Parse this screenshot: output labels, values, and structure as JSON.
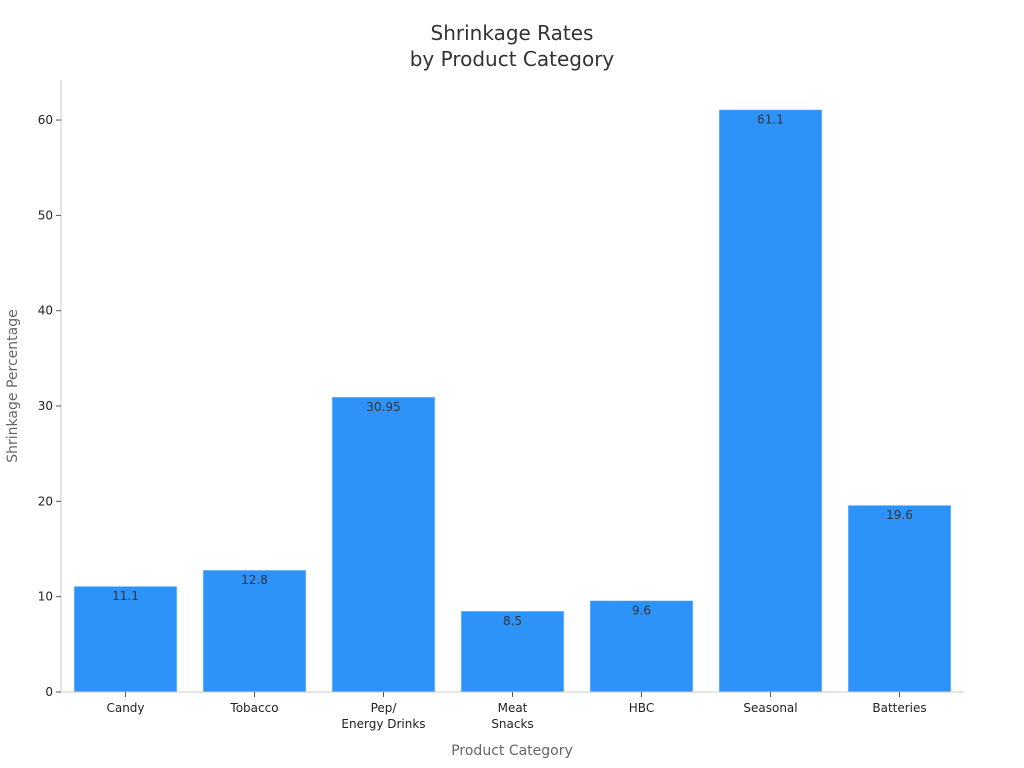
{
  "chart_data": {
    "type": "bar",
    "title": "Shrinkage Rates\nby Product Category",
    "xlabel": "Product Category",
    "ylabel": "Shrinkage Percentage",
    "categories": [
      "Candy",
      "Tobacco",
      "Pep/\nEnergy Drinks",
      "Meat\nSnacks",
      "HBC",
      "Seasonal",
      "Batteries"
    ],
    "values": [
      11.1,
      12.8,
      30.95,
      8.5,
      9.6,
      61.1,
      19.6
    ],
    "value_labels": [
      "11.1",
      "12.8",
      "30.95",
      "8.5",
      "9.6",
      "61.1",
      "19.6"
    ],
    "y_ticks": [
      0,
      10,
      20,
      30,
      40,
      50,
      60
    ],
    "ylim": [
      0,
      64.2
    ],
    "grid": false,
    "legend": "none",
    "bar_color": "#2e93f8"
  }
}
